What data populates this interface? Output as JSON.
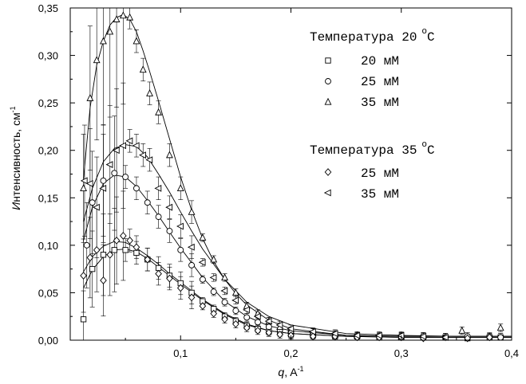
{
  "chart_data": {
    "type": "scatter",
    "xlabel_italic": "q",
    "xlabel_rest": ", A",
    "xlabel_sup": "-1",
    "ylabel_italic": "И",
    "ylabel_rest": "нтенсивность, см",
    "ylabel_sup": "-1",
    "xlim": [
      0.0,
      0.4
    ],
    "ylim": [
      0.0,
      0.35
    ],
    "xticks": [
      {
        "v": 0.1,
        "label": "0,1"
      },
      {
        "v": 0.2,
        "label": "0,2"
      },
      {
        "v": 0.3,
        "label": "0,3"
      },
      {
        "v": 0.4,
        "label": "0,4"
      }
    ],
    "yticks": [
      {
        "v": 0.0,
        "label": "0,00"
      },
      {
        "v": 0.05,
        "label": "0,05"
      },
      {
        "v": 0.1,
        "label": "0,10"
      },
      {
        "v": 0.15,
        "label": "0,15"
      },
      {
        "v": 0.2,
        "label": "0,20"
      },
      {
        "v": 0.25,
        "label": "0,25"
      },
      {
        "v": 0.3,
        "label": "0,30"
      },
      {
        "v": 0.35,
        "label": "0,35"
      }
    ],
    "legend": {
      "placement": "top-right",
      "groups": [
        {
          "title": "Температура 20",
          "title_sup": "o",
          "title_unit": "C",
          "entries": [
            {
              "label": "20 мМ",
              "marker": "square"
            },
            {
              "label": "25 мМ",
              "marker": "circle"
            },
            {
              "label": "35 мМ",
              "marker": "triangle-up"
            }
          ]
        },
        {
          "title": "Температура 35",
          "title_sup": "o",
          "title_unit": "C",
          "entries": [
            {
              "label": "25 мМ",
              "marker": "diamond"
            },
            {
              "label": "35 мМ",
              "marker": "triangle-left"
            }
          ]
        }
      ]
    },
    "series": [
      {
        "marker": "square",
        "x": [
          0.012,
          0.02,
          0.03,
          0.04,
          0.05,
          0.06,
          0.07,
          0.08,
          0.09,
          0.1,
          0.11,
          0.12,
          0.13,
          0.14,
          0.15,
          0.16,
          0.17,
          0.18,
          0.19,
          0.2,
          0.22,
          0.24,
          0.26,
          0.28,
          0.3,
          0.32,
          0.34,
          0.36,
          0.38,
          0.39
        ],
        "y": [
          0.022,
          0.075,
          0.09,
          0.095,
          0.095,
          0.092,
          0.085,
          0.076,
          0.068,
          0.06,
          0.05,
          0.041,
          0.033,
          0.025,
          0.02,
          0.015,
          0.012,
          0.009,
          0.008,
          0.006,
          0.005,
          0.004,
          0.004,
          0.003,
          0.003,
          0.003,
          0.003,
          0.002,
          0.003,
          0.003
        ]
      },
      {
        "marker": "circle",
        "x": [
          0.015,
          0.02,
          0.03,
          0.04,
          0.05,
          0.06,
          0.07,
          0.08,
          0.09,
          0.1,
          0.11,
          0.12,
          0.13,
          0.14,
          0.15,
          0.16,
          0.17,
          0.18,
          0.19,
          0.2,
          0.22,
          0.24,
          0.26,
          0.28,
          0.3,
          0.32,
          0.34,
          0.36,
          0.38,
          0.39
        ],
        "y": [
          0.1,
          0.145,
          0.168,
          0.176,
          0.172,
          0.16,
          0.145,
          0.13,
          0.115,
          0.095,
          0.079,
          0.064,
          0.051,
          0.04,
          0.031,
          0.024,
          0.019,
          0.014,
          0.011,
          0.009,
          0.006,
          0.005,
          0.004,
          0.004,
          0.004,
          0.004,
          0.003,
          0.004,
          0.004,
          0.003
        ]
      },
      {
        "marker": "triangle-up",
        "x": [
          0.012,
          0.018,
          0.024,
          0.03,
          0.036,
          0.042,
          0.048,
          0.054,
          0.06,
          0.066,
          0.072,
          0.08,
          0.09,
          0.1,
          0.11,
          0.12,
          0.13,
          0.14,
          0.15,
          0.16,
          0.17,
          0.18,
          0.19,
          0.2,
          0.22,
          0.24,
          0.26,
          0.3,
          0.355,
          0.39
        ],
        "y": [
          0.16,
          0.255,
          0.295,
          0.315,
          0.325,
          0.338,
          0.342,
          0.34,
          0.315,
          0.285,
          0.26,
          0.24,
          0.195,
          0.16,
          0.135,
          0.108,
          0.085,
          0.066,
          0.05,
          0.036,
          0.028,
          0.02,
          0.014,
          0.01,
          0.008,
          0.006,
          0.005,
          0.004,
          0.01,
          0.013
        ]
      },
      {
        "marker": "diamond",
        "x": [
          0.012,
          0.018,
          0.024,
          0.03,
          0.036,
          0.042,
          0.048,
          0.054,
          0.06,
          0.07,
          0.08,
          0.09,
          0.1,
          0.11,
          0.12,
          0.13,
          0.14,
          0.15,
          0.16,
          0.17,
          0.18,
          0.19,
          0.2,
          0.22,
          0.24,
          0.26,
          0.28,
          0.3,
          0.32,
          0.34,
          0.36,
          0.38
        ],
        "y": [
          0.068,
          0.087,
          0.095,
          0.063,
          0.09,
          0.105,
          0.11,
          0.105,
          0.098,
          0.085,
          0.07,
          0.065,
          0.055,
          0.045,
          0.036,
          0.028,
          0.022,
          0.017,
          0.013,
          0.01,
          0.008,
          0.006,
          0.005,
          0.004,
          0.004,
          0.003,
          0.003,
          0.003,
          0.002,
          0.003,
          0.002,
          0.003
        ]
      },
      {
        "marker": "triangle-left",
        "x": [
          0.013,
          0.018,
          0.024,
          0.03,
          0.036,
          0.042,
          0.048,
          0.054,
          0.06,
          0.066,
          0.072,
          0.08,
          0.09,
          0.1,
          0.11,
          0.12,
          0.13,
          0.14,
          0.15,
          0.16,
          0.17,
          0.18,
          0.19,
          0.2,
          0.22,
          0.24,
          0.26,
          0.28,
          0.3,
          0.32,
          0.34
        ],
        "y": [
          0.168,
          0.165,
          0.14,
          0.16,
          0.185,
          0.2,
          0.205,
          0.21,
          0.205,
          0.195,
          0.19,
          0.16,
          0.14,
          0.12,
          0.098,
          0.082,
          0.066,
          0.052,
          0.042,
          0.032,
          0.025,
          0.02,
          0.016,
          0.012,
          0.009,
          0.007,
          0.005,
          0.005,
          0.005,
          0.004,
          0.003
        ]
      }
    ],
    "fit_curves": [
      {
        "x": [
          0.012,
          0.02,
          0.03,
          0.04,
          0.05,
          0.06,
          0.07,
          0.08,
          0.09,
          0.1,
          0.12,
          0.14,
          0.16,
          0.18,
          0.2,
          0.25,
          0.3,
          0.35,
          0.4
        ],
        "y": [
          0.055,
          0.074,
          0.088,
          0.095,
          0.096,
          0.093,
          0.086,
          0.077,
          0.068,
          0.059,
          0.042,
          0.027,
          0.016,
          0.01,
          0.007,
          0.004,
          0.003,
          0.003,
          0.003
        ]
      },
      {
        "x": [
          0.012,
          0.02,
          0.03,
          0.04,
          0.05,
          0.06,
          0.07,
          0.08,
          0.09,
          0.1,
          0.12,
          0.14,
          0.16,
          0.18,
          0.2,
          0.25,
          0.3,
          0.35,
          0.4
        ],
        "y": [
          0.105,
          0.14,
          0.165,
          0.174,
          0.172,
          0.162,
          0.147,
          0.131,
          0.114,
          0.097,
          0.066,
          0.041,
          0.025,
          0.015,
          0.01,
          0.005,
          0.004,
          0.004,
          0.004
        ]
      },
      {
        "x": [
          0.012,
          0.018,
          0.024,
          0.03,
          0.036,
          0.042,
          0.048,
          0.054,
          0.06,
          0.066,
          0.072,
          0.08,
          0.09,
          0.1,
          0.11,
          0.12,
          0.13,
          0.14,
          0.15,
          0.16,
          0.18,
          0.2,
          0.25,
          0.3,
          0.35,
          0.4
        ],
        "y": [
          0.17,
          0.245,
          0.29,
          0.315,
          0.332,
          0.34,
          0.343,
          0.338,
          0.325,
          0.305,
          0.283,
          0.252,
          0.212,
          0.172,
          0.137,
          0.107,
          0.083,
          0.064,
          0.049,
          0.037,
          0.021,
          0.012,
          0.005,
          0.004,
          0.004,
          0.004
        ]
      },
      {
        "x": [
          0.012,
          0.02,
          0.03,
          0.04,
          0.05,
          0.06,
          0.07,
          0.08,
          0.09,
          0.1,
          0.12,
          0.14,
          0.16,
          0.18,
          0.2,
          0.25,
          0.3,
          0.35,
          0.4
        ],
        "y": [
          0.072,
          0.088,
          0.099,
          0.104,
          0.103,
          0.097,
          0.089,
          0.08,
          0.07,
          0.061,
          0.043,
          0.028,
          0.017,
          0.01,
          0.007,
          0.004,
          0.003,
          0.003,
          0.003
        ]
      },
      {
        "x": [
          0.012,
          0.02,
          0.03,
          0.04,
          0.05,
          0.06,
          0.07,
          0.08,
          0.09,
          0.1,
          0.11,
          0.12,
          0.14,
          0.16,
          0.18,
          0.2,
          0.25,
          0.3,
          0.35,
          0.4
        ],
        "y": [
          0.125,
          0.16,
          0.188,
          0.202,
          0.206,
          0.204,
          0.193,
          0.175,
          0.156,
          0.135,
          0.115,
          0.096,
          0.064,
          0.04,
          0.025,
          0.016,
          0.007,
          0.005,
          0.004,
          0.004
        ]
      }
    ],
    "colors": {
      "ink": "#000000",
      "background": "#ffffff"
    }
  }
}
